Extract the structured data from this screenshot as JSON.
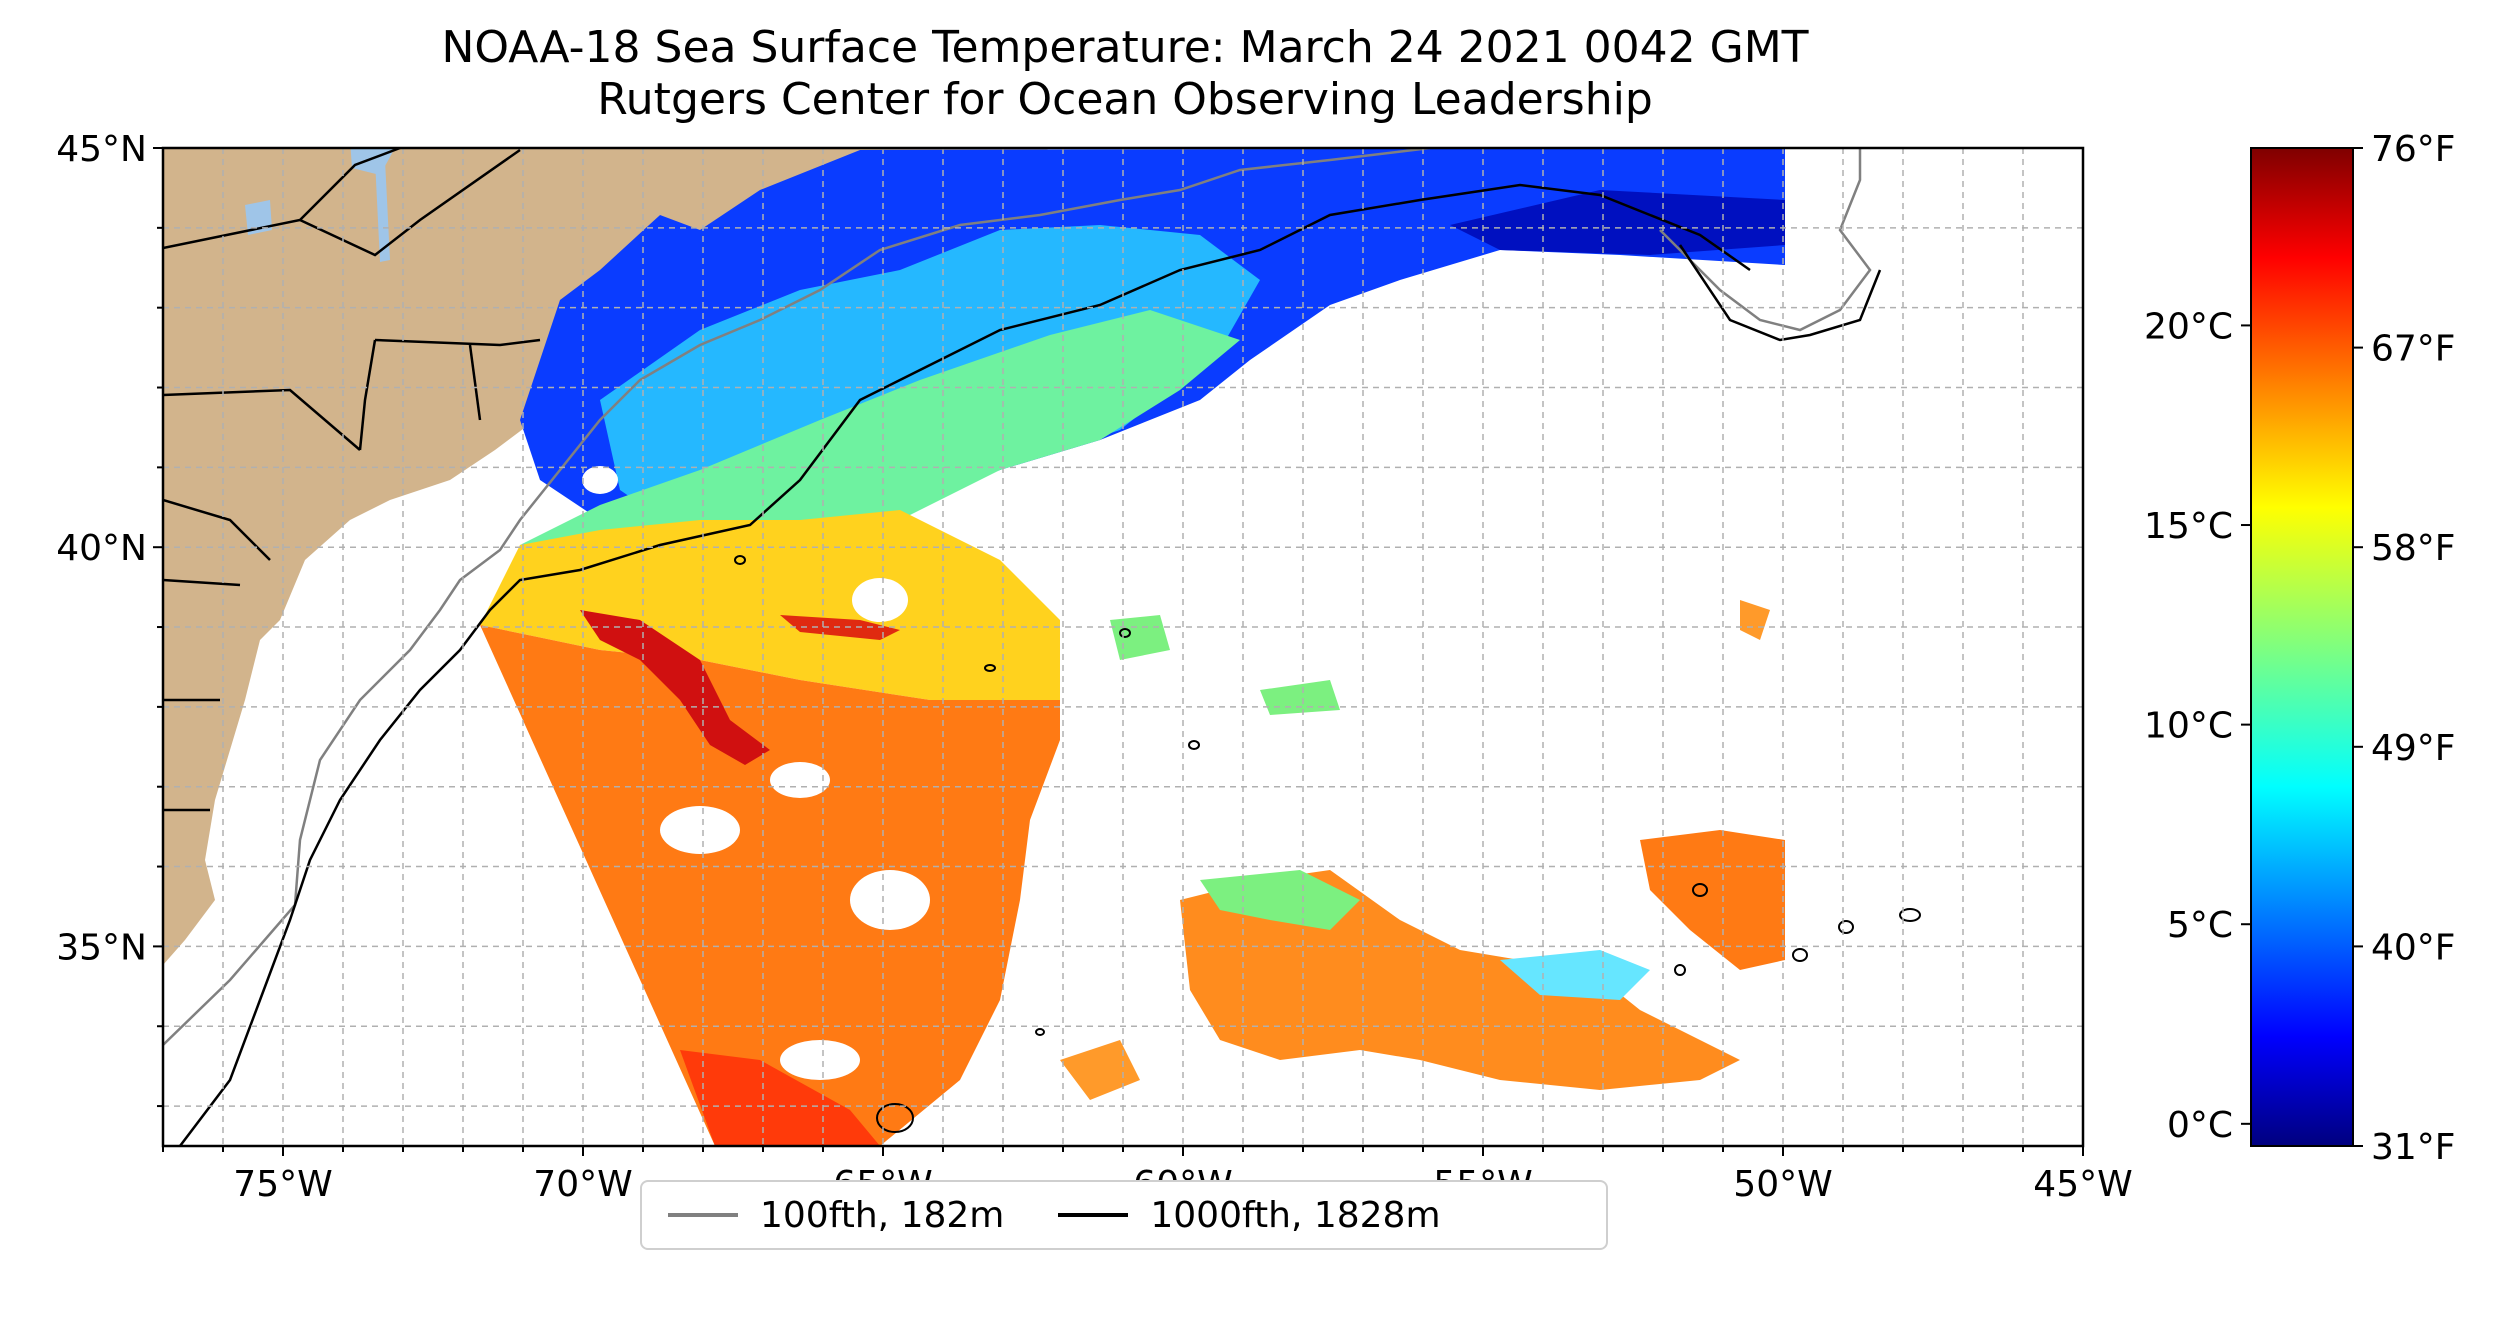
{
  "title": {
    "line1": "NOAA-18 Sea Surface Temperature: March 24 2021 0042 GMT",
    "line2": "Rutgers Center for Ocean Observing Leadership"
  },
  "map": {
    "lon_range": [
      -77,
      -45
    ],
    "lat_range": [
      32.5,
      45
    ],
    "lon_ticks": [
      "75°W",
      "70°W",
      "65°W",
      "60°W",
      "55°W",
      "50°W",
      "45°W"
    ],
    "lat_ticks": [
      "45°N",
      "40°N",
      "35°N"
    ],
    "grid": "dashed, every 1 degree",
    "land_color": "#d2b48c",
    "lake_color": "#9fc5e8"
  },
  "legend": {
    "placement": "bottom-center",
    "items": [
      {
        "label": "100fth, 182m",
        "color": "#808080"
      },
      {
        "label": "1000fth, 1828m",
        "color": "#000000"
      }
    ]
  },
  "colorbar": {
    "colormap": "jet",
    "celsius_ticks": [
      "0°C",
      "5°C",
      "10°C",
      "15°C",
      "20°C"
    ],
    "fahrenheit_ticks": [
      "31°F",
      "40°F",
      "49°F",
      "58°F",
      "67°F",
      "76°F"
    ],
    "colors": [
      "#00007f",
      "#0000ff",
      "#007fff",
      "#00ffff",
      "#7fff7f",
      "#ffff00",
      "#ff7f00",
      "#ff0000",
      "#7f0000"
    ]
  }
}
